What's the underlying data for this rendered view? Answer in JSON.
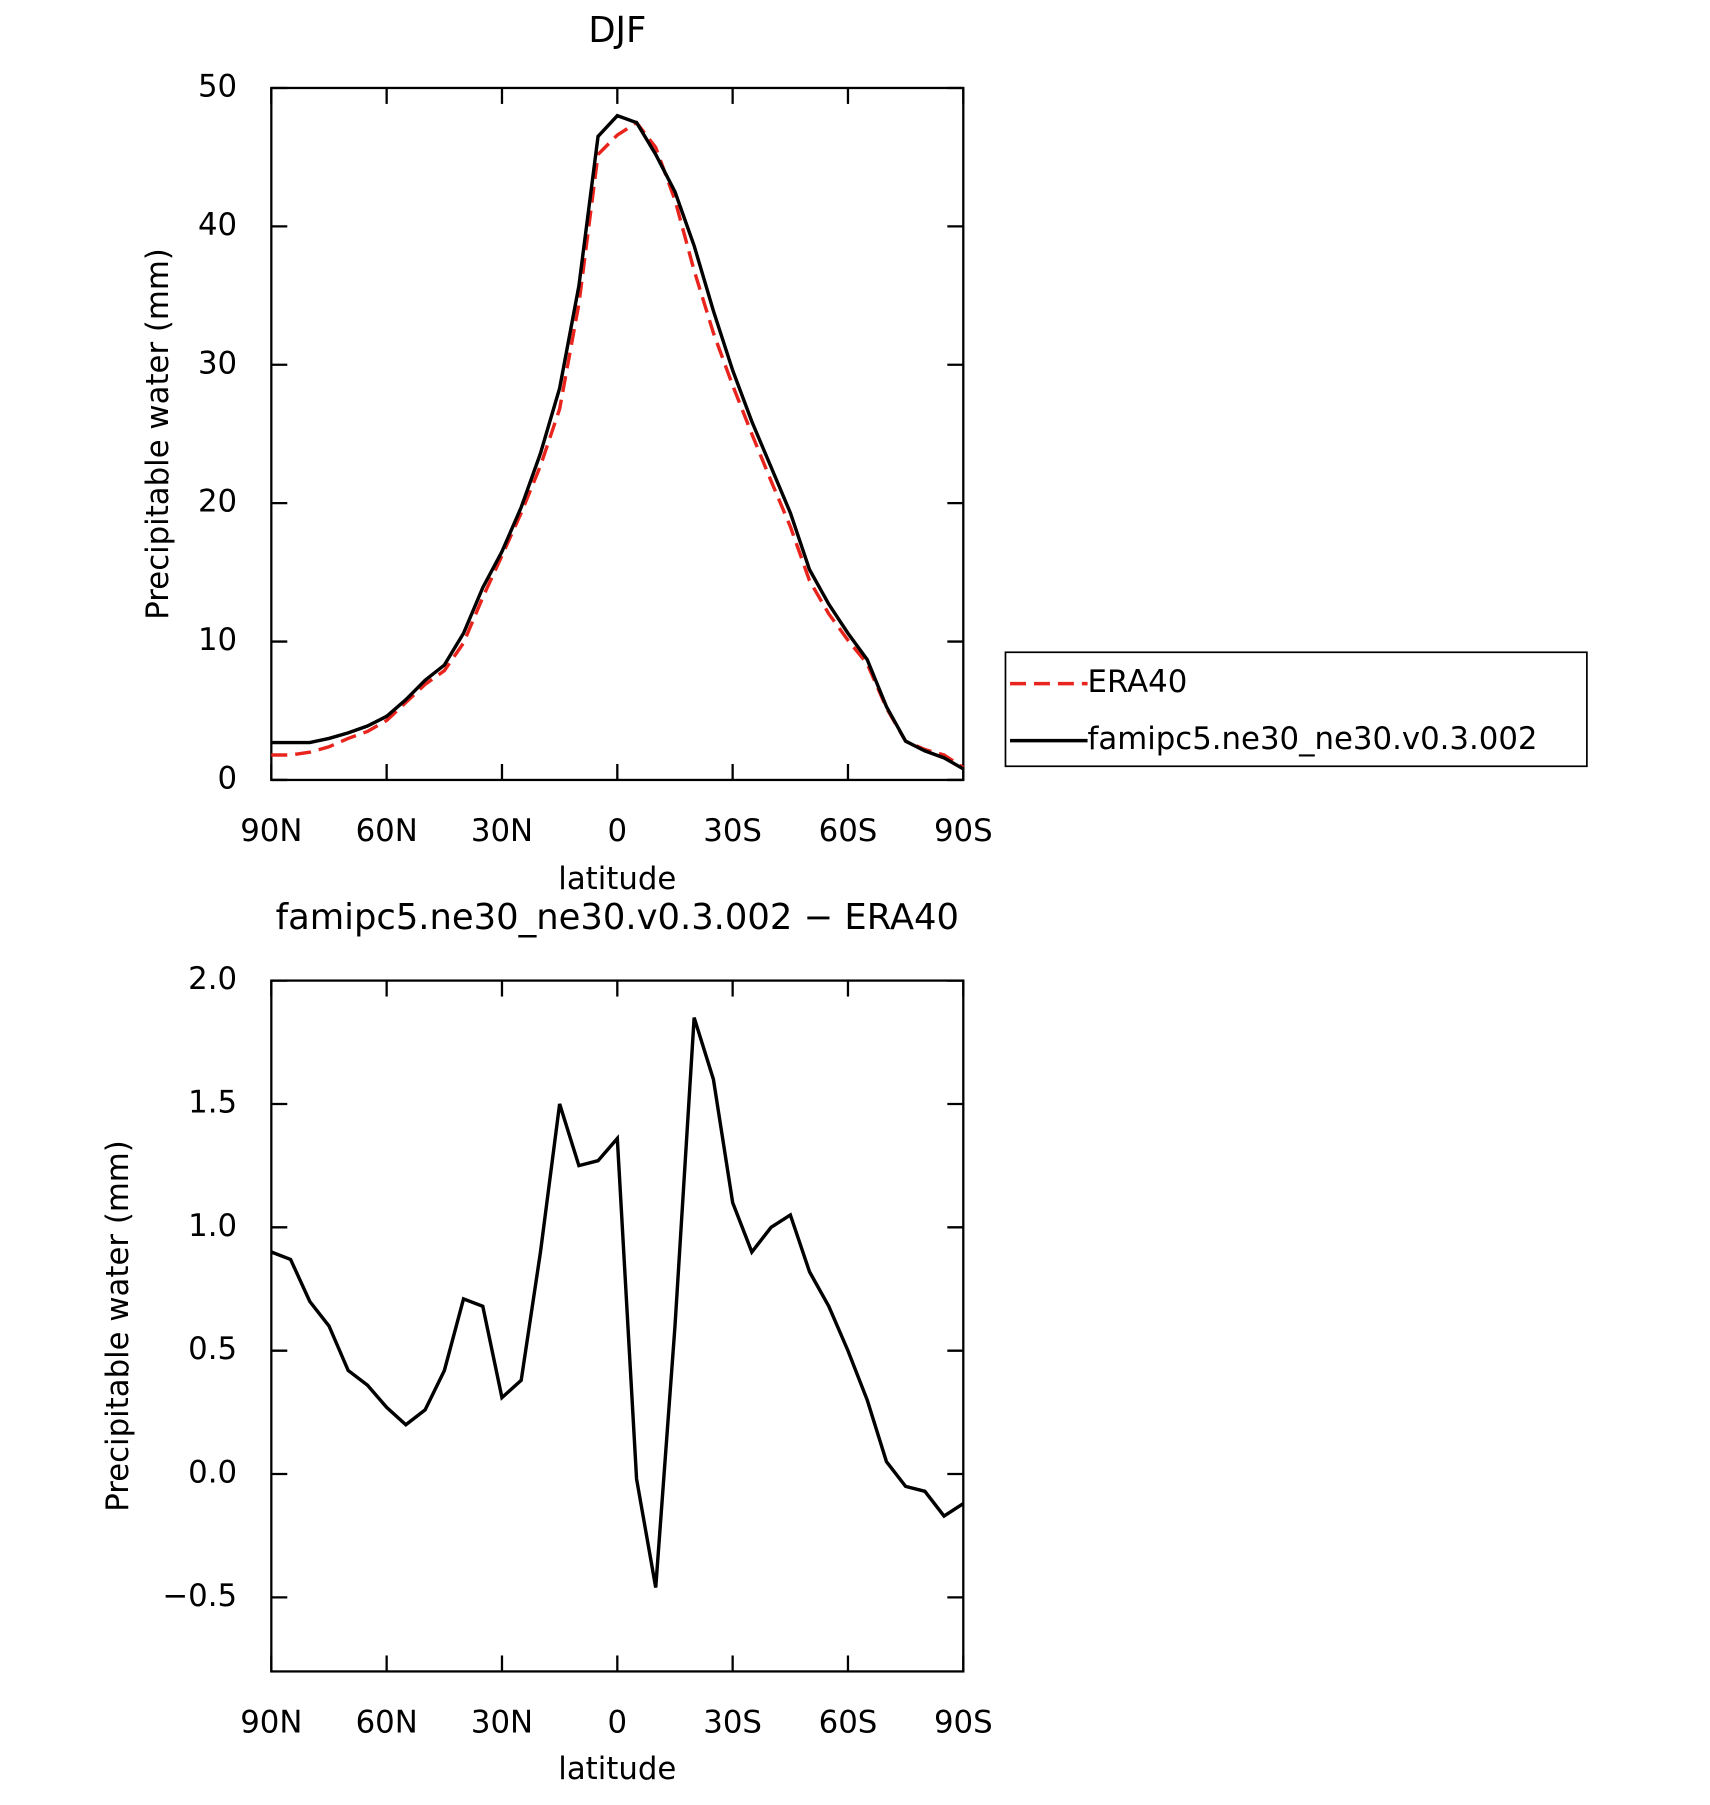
{
  "chart_data": [
    {
      "type": "line",
      "title": "DJF",
      "xlabel": "latitude",
      "ylabel": "Precipitable water (mm)",
      "x": [
        90,
        85,
        80,
        75,
        70,
        65,
        60,
        55,
        50,
        45,
        40,
        35,
        30,
        25,
        20,
        15,
        10,
        5,
        0,
        -5,
        -10,
        -15,
        -20,
        -25,
        -30,
        -35,
        -40,
        -45,
        -50,
        -55,
        -60,
        -65,
        -70,
        -75,
        -80,
        -85,
        -90
      ],
      "series": [
        {
          "name": "ERA40",
          "color": "#e8241c",
          "dash": true,
          "values": [
            1.8,
            1.8,
            2.0,
            2.4,
            3.0,
            3.5,
            4.3,
            5.6,
            6.9,
            7.9,
            9.9,
            13.2,
            16.2,
            19.3,
            22.7,
            26.8,
            34.4,
            45.2,
            46.6,
            47.5,
            45.7,
            41.9,
            36.8,
            32.3,
            28.5,
            25.0,
            21.6,
            18.3,
            14.4,
            12.0,
            10.1,
            8.4,
            5.2,
            2.8,
            2.2,
            1.8,
            0.9
          ]
        },
        {
          "name": "famipc5.ne30_ne30.v0.3.002",
          "color": "#000000",
          "dash": false,
          "values": [
            2.7,
            2.7,
            2.7,
            3.0,
            3.4,
            3.9,
            4.6,
            5.8,
            7.2,
            8.3,
            10.6,
            13.9,
            16.5,
            19.7,
            23.6,
            28.3,
            35.7,
            46.5,
            48.0,
            47.5,
            45.2,
            42.5,
            38.6,
            33.9,
            29.6,
            25.9,
            22.6,
            19.3,
            15.2,
            12.7,
            10.6,
            8.7,
            5.3,
            2.8,
            2.1,
            1.6,
            0.8
          ]
        }
      ],
      "xlim": [
        90,
        -90
      ],
      "xticks": [
        {
          "value": 90,
          "label": "90N"
        },
        {
          "value": 60,
          "label": "60N"
        },
        {
          "value": 30,
          "label": "30N"
        },
        0,
        {
          "value": -30,
          "label": "30S"
        },
        {
          "value": -60,
          "label": "60S"
        },
        {
          "value": -90,
          "label": "90S"
        }
      ],
      "ylim": [
        0,
        50
      ],
      "yticks": [
        0,
        10,
        20,
        30,
        40,
        50
      ],
      "legend": "outside-right"
    },
    {
      "type": "line",
      "title": "famipc5.ne30_ne30.v0.3.002 − ERA40",
      "xlabel": "latitude",
      "ylabel": "Precipitable water (mm)",
      "x": [
        90,
        85,
        80,
        75,
        70,
        65,
        60,
        55,
        50,
        45,
        40,
        35,
        30,
        25,
        20,
        15,
        10,
        5,
        0,
        -5,
        -10,
        -15,
        -20,
        -25,
        -30,
        -35,
        -40,
        -45,
        -50,
        -55,
        -60,
        -65,
        -70,
        -75,
        -80,
        -85,
        -90
      ],
      "series": [
        {
          "color": "#000000",
          "dash": false,
          "values": [
            0.9,
            0.87,
            0.7,
            0.6,
            0.42,
            0.36,
            0.27,
            0.2,
            0.26,
            0.42,
            0.71,
            0.68,
            0.31,
            0.38,
            0.9,
            1.5,
            1.25,
            1.27,
            1.36,
            -0.02,
            -0.46,
            0.6,
            1.85,
            1.6,
            1.1,
            0.9,
            1.0,
            1.05,
            0.82,
            0.68,
            0.5,
            0.3,
            0.05,
            -0.05,
            -0.07,
            -0.17,
            -0.12
          ]
        }
      ],
      "xlim": [
        90,
        -90
      ],
      "xticks": [
        {
          "value": 90,
          "label": "90N"
        },
        {
          "value": 60,
          "label": "60N"
        },
        {
          "value": 30,
          "label": "30N"
        },
        0,
        {
          "value": -30,
          "label": "30S"
        },
        {
          "value": -60,
          "label": "60S"
        },
        {
          "value": -90,
          "label": "90S"
        }
      ],
      "ylim": [
        -0.8,
        2.0
      ],
      "yticks": [
        {
          "value": -0.5,
          "label": "−0.5"
        },
        {
          "value": 0,
          "label": "0.0"
        },
        0.5,
        {
          "value": 1,
          "label": "1.0"
        },
        1.5,
        {
          "value": 2,
          "label": "2.0"
        }
      ]
    }
  ]
}
